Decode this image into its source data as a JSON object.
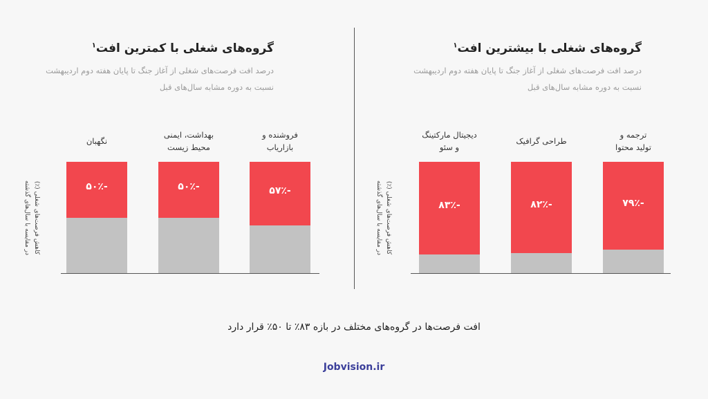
{
  "chart_data": [
    {
      "type": "bar",
      "title": "گروه‌های شغلی با بیشترین افت",
      "title_sup": "۱",
      "subtitle_lines": [
        "درصد افت فرصت‌های شغلی از آغاز جنگ تا پایان هفته دوم اردیبهشت",
        "نسبت به دوره مشابه سال‌های قبل"
      ],
      "ylabel_lines": [
        "کاهش فرصت‌های شغلی (٪)",
        "در مقایسه با سال‌های گذشته"
      ],
      "categories": [
        [
          "ترجمه و",
          "تولید محتوا"
        ],
        [
          "طراحی گرافیک"
        ],
        [
          "دیجیتال مارکتینگ",
          "و سئو"
        ]
      ],
      "values": [
        -79,
        -82,
        -83
      ],
      "value_labels": [
        "-۷۹٪",
        "-۸۲٪",
        "-۸۳٪"
      ],
      "ylim": [
        0,
        100
      ],
      "colors": {
        "decline": "#f2474e",
        "remaining": "#c2c2c2"
      }
    },
    {
      "type": "bar",
      "title": "گروه‌های شغلی با کمترین افت",
      "title_sup": "۱",
      "subtitle_lines": [
        "درصد افت فرصت‌های شغلی از آغاز جنگ تا پایان هفته دوم اردیبهشت",
        "نسبت به دوره مشابه سال‌های قبل"
      ],
      "ylabel_lines": [
        "کاهش فرصت‌های شغلی (٪)",
        "در مقایسه با سال‌های گذشته"
      ],
      "categories": [
        [
          "فروشنده و",
          "بازاریاب"
        ],
        [
          "بهداشت، ایمنی",
          "محیط زیست"
        ],
        [
          "نگهبان"
        ]
      ],
      "values": [
        -57,
        -50,
        -50
      ],
      "value_labels": [
        "-۵۷٪",
        "-۵۰٪",
        "-۵۰٪"
      ],
      "ylim": [
        0,
        100
      ],
      "colors": {
        "decline": "#f2474e",
        "remaining": "#c2c2c2"
      }
    }
  ],
  "caption": "افت فرصت‌ها در گروه‌های مختلف در بازه ۸۳٪ تا ۵۰٪ قرار دارد",
  "brand": "Jobvision.ir"
}
